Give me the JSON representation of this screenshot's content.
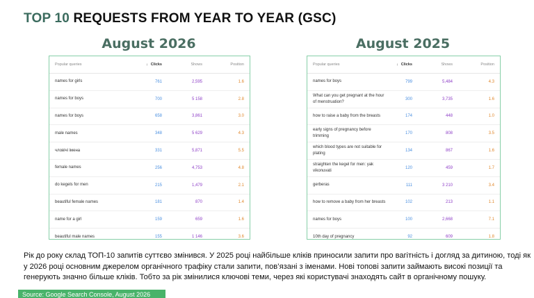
{
  "title": {
    "prefix": "TOP 10",
    "rest": " REQUESTS FROM YEAR TO YEAR (GSC)"
  },
  "columns": {
    "query": "Popular queries",
    "clicks": "Clicks",
    "shows": "Shows",
    "position": "Position",
    "sort_arrow": "↓"
  },
  "left": {
    "heading": "August 2026",
    "rows": [
      {
        "query": "names for girls",
        "clicks": "761",
        "shows": "2,595",
        "position": "1.6"
      },
      {
        "query": "names for boys",
        "clicks": "700",
        "shows": "5 158",
        "position": "2.8"
      },
      {
        "query": "names for boys",
        "clicks": "658",
        "shows": "3,861",
        "position": "3.0"
      },
      {
        "query": "male names",
        "clicks": "348",
        "shows": "5 629",
        "position": "4.3"
      },
      {
        "query": "чловічі імена",
        "clicks": "331",
        "shows": "5,871",
        "position": "5.5"
      },
      {
        "query": "female names",
        "clicks": "256",
        "shows": "4,753",
        "position": "4.8"
      },
      {
        "query": "do kegels for men",
        "clicks": "215",
        "shows": "1,479",
        "position": "2.1"
      },
      {
        "query": "beautiful female names",
        "clicks": "181",
        "shows": "870",
        "position": "1.4"
      },
      {
        "query": "name for a girl",
        "clicks": "159",
        "shows": "659",
        "position": "1.6"
      },
      {
        "query": "beautiful male names",
        "clicks": "155",
        "shows": "1 146",
        "position": "3.6"
      }
    ]
  },
  "right": {
    "heading": "August 2025",
    "rows": [
      {
        "query": "names for boys",
        "clicks": "799",
        "shows": "5,484",
        "position": "4.3"
      },
      {
        "query": "What can you get pregnant at the hour of menstruation?",
        "clicks": "300",
        "shows": "3,735",
        "position": "1.6"
      },
      {
        "query": "how to raise a baby from the breasts",
        "clicks": "174",
        "shows": "448",
        "position": "1.0"
      },
      {
        "query": "early signs of pregnancy before trimming",
        "clicks": "170",
        "shows": "808",
        "position": "3.5"
      },
      {
        "query": "which blood types are not suitable for plating",
        "clicks": "134",
        "shows": "867",
        "position": "1.6"
      },
      {
        "query": "straighten the kegel for men: yak vikonuvati",
        "clicks": "120",
        "shows": "459",
        "position": "1.7"
      },
      {
        "query": "gerberas",
        "clicks": "111",
        "shows": "3 210",
        "position": "3.4"
      },
      {
        "query": "how to remove a baby from her breasts",
        "clicks": "102",
        "shows": "213",
        "position": "1.1"
      },
      {
        "query": "names for boys",
        "clicks": "100",
        "shows": "2,668",
        "position": "7.1"
      },
      {
        "query": "10th day of pregnancy",
        "clicks": "92",
        "shows": "609",
        "position": "1.8"
      }
    ]
  },
  "description": "Рік до року склад ТОП-10 запитів суттєво змінився. У 2025 році найбільше кліків приносили запити про вагітність і догляд за дитиною, тоді як у 2026 році основним джерелом органічного трафіку стали запити, пов’язані з іменами. Нові топові запити займають високі позиції та генерують значно більше кліків. Тобто за рік змінилися ключові теми, через які користувачі знаходять сайт в органічному пошуку.",
  "source": "Source: Google Search Console, August 2026",
  "colors": {
    "accent": "#3b6b5e",
    "border": "#86cfa7",
    "clicks": "#4a8fe0",
    "shows": "#8e3fc7",
    "position": "#e0872a",
    "source_bg": "#49b36a"
  }
}
